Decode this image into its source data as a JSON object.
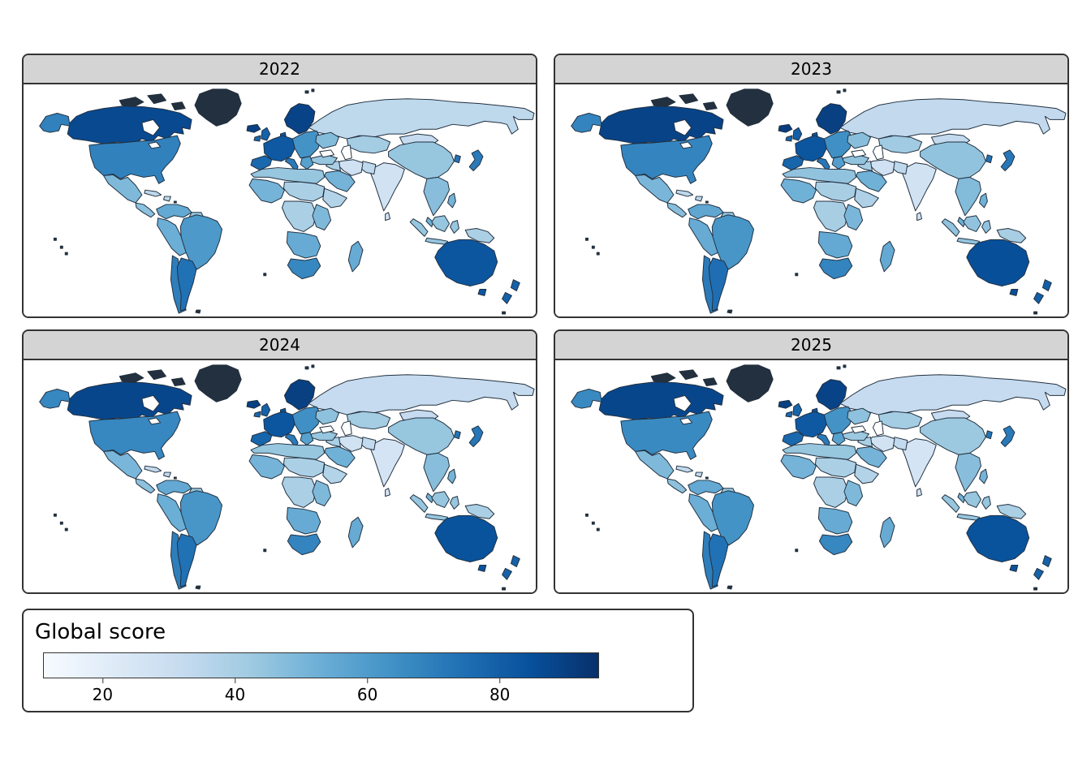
{
  "style_colors": {
    "map_outline": "#22303f",
    "water": "#ffffff",
    "strip_background": "#d4d4d4",
    "panel_border": "#333333"
  },
  "panels": [
    {
      "label": "2022"
    },
    {
      "label": "2023"
    },
    {
      "label": "2024"
    },
    {
      "label": "2025"
    }
  ],
  "legend": {
    "title": "Global score",
    "ticks": [
      "20",
      "40",
      "60",
      "80"
    ]
  },
  "chart_data": {
    "type": "choropleth",
    "title": "",
    "facets": [
      "2022",
      "2023",
      "2024",
      "2025"
    ],
    "legend_title": "Global score",
    "colorbar": {
      "ticks": [
        20,
        40,
        60,
        80
      ],
      "domain": [
        11,
        95
      ],
      "palette": [
        "#f7fbff",
        "#deebf7",
        "#c6dbef",
        "#9ecae1",
        "#6baed6",
        "#4292c6",
        "#2171b5",
        "#08519c",
        "#08306b"
      ]
    },
    "regions": [
      {
        "id": "canada",
        "name": "Canada",
        "values": [
          87,
          89,
          88,
          88
        ]
      },
      {
        "id": "usa",
        "name": "United States",
        "values": [
          69,
          68,
          67,
          66
        ]
      },
      {
        "id": "mexico",
        "name": "Mexico",
        "values": [
          49,
          50,
          50,
          49
        ]
      },
      {
        "id": "central_america",
        "name": "Central America",
        "values": [
          46,
          47,
          46,
          46
        ]
      },
      {
        "id": "cuba",
        "name": "Caribbean",
        "values": [
          34,
          34,
          33,
          33
        ]
      },
      {
        "id": "colombia_venezuela",
        "name": "Colombia / Venezuela",
        "values": [
          55,
          56,
          55,
          55
        ]
      },
      {
        "id": "guyanas",
        "name": "Guyanas",
        "values": [
          44,
          45,
          44,
          44
        ]
      },
      {
        "id": "brazil",
        "name": "Brazil",
        "values": [
          61,
          62,
          62,
          63
        ]
      },
      {
        "id": "peru_bolivia",
        "name": "Peru / Bolivia",
        "values": [
          53,
          54,
          53,
          53
        ]
      },
      {
        "id": "chile",
        "name": "Chile",
        "values": [
          70,
          71,
          70,
          70
        ]
      },
      {
        "id": "argentina",
        "name": "Argentina",
        "values": [
          74,
          75,
          74,
          74
        ]
      },
      {
        "id": "iceland",
        "name": "Iceland",
        "values": [
          90,
          91,
          90,
          90
        ]
      },
      {
        "id": "uk",
        "name": "United Kingdom",
        "values": [
          79,
          80,
          79,
          78
        ]
      },
      {
        "id": "ireland",
        "name": "Ireland",
        "values": [
          77,
          78,
          77,
          77
        ]
      },
      {
        "id": "scandinavia",
        "name": "Scandinavia",
        "values": [
          89,
          90,
          90,
          89
        ]
      },
      {
        "id": "western_europe",
        "name": "Western Europe",
        "values": [
          82,
          83,
          83,
          82
        ]
      },
      {
        "id": "iberia",
        "name": "Spain / Portugal",
        "values": [
          77,
          78,
          78,
          77
        ]
      },
      {
        "id": "italy",
        "name": "Italy",
        "values": [
          71,
          72,
          71,
          71
        ]
      },
      {
        "id": "eastern_europe",
        "name": "Eastern Europe",
        "values": [
          63,
          64,
          64,
          63
        ]
      },
      {
        "id": "balkans",
        "name": "Balkans / Greece",
        "values": [
          58,
          59,
          58,
          58
        ]
      },
      {
        "id": "ukraine",
        "name": "Ukraine",
        "values": [
          48,
          47,
          46,
          46
        ]
      },
      {
        "id": "turkey",
        "name": "Turkey",
        "values": [
          44,
          45,
          44,
          43
        ]
      },
      {
        "id": "russia",
        "name": "Russia",
        "values": [
          34,
          33,
          32,
          32
        ]
      },
      {
        "id": "central_asia",
        "name": "Central Asia",
        "values": [
          41,
          42,
          41,
          41
        ]
      },
      {
        "id": "mongolia",
        "name": "Mongolia",
        "values": [
          32,
          33,
          32,
          32
        ]
      },
      {
        "id": "china",
        "name": "China",
        "values": [
          44,
          45,
          44,
          43
        ]
      },
      {
        "id": "korea",
        "name": "South Korea",
        "values": [
          73,
          74,
          73,
          73
        ]
      },
      {
        "id": "japan",
        "name": "Japan",
        "values": [
          71,
          72,
          72,
          71
        ]
      },
      {
        "id": "india",
        "name": "India",
        "values": [
          27,
          27,
          26,
          26
        ]
      },
      {
        "id": "pakistan",
        "name": "Pakistan",
        "values": [
          34,
          34,
          33,
          33
        ]
      },
      {
        "id": "iran",
        "name": "Iran",
        "values": [
          28,
          28,
          27,
          27
        ]
      },
      {
        "id": "iraq_levant",
        "name": "Iraq / Levant",
        "values": [
          39,
          40,
          39,
          39
        ]
      },
      {
        "id": "saudi_arabia",
        "name": "Arabian Peninsula",
        "values": [
          51,
          52,
          52,
          51
        ]
      },
      {
        "id": "north_africa",
        "name": "North Africa",
        "values": [
          44,
          45,
          44,
          44
        ]
      },
      {
        "id": "west_africa",
        "name": "West Africa",
        "values": [
          51,
          52,
          51,
          51
        ]
      },
      {
        "id": "sahel_sudan",
        "name": "Sahel / Sudan",
        "values": [
          39,
          40,
          39,
          39
        ]
      },
      {
        "id": "horn_of_africa",
        "name": "Horn of Africa",
        "values": [
          37,
          38,
          37,
          37
        ]
      },
      {
        "id": "central_africa",
        "name": "Central Africa",
        "values": [
          39,
          40,
          39,
          39
        ]
      },
      {
        "id": "east_africa",
        "name": "East Africa",
        "values": [
          49,
          50,
          49,
          49
        ]
      },
      {
        "id": "southern_africa",
        "name": "Southern Africa",
        "values": [
          54,
          55,
          54,
          54
        ]
      },
      {
        "id": "south_africa",
        "name": "South Africa",
        "values": [
          67,
          68,
          68,
          67
        ]
      },
      {
        "id": "madagascar",
        "name": "Madagascar",
        "values": [
          54,
          55,
          54,
          54
        ]
      },
      {
        "id": "se_asia",
        "name": "Mainland Southeast Asia",
        "values": [
          47,
          48,
          47,
          47
        ]
      },
      {
        "id": "malaysia",
        "name": "Malaysia",
        "values": [
          52,
          53,
          52,
          52
        ]
      },
      {
        "id": "indonesia",
        "name": "Indonesia",
        "values": [
          44,
          45,
          44,
          44
        ]
      },
      {
        "id": "new_guinea",
        "name": "Papua New Guinea",
        "values": [
          39,
          40,
          39,
          39
        ]
      },
      {
        "id": "philippines",
        "name": "Philippines",
        "values": [
          51,
          52,
          51,
          51
        ]
      },
      {
        "id": "australia",
        "name": "Australia",
        "values": [
          83,
          85,
          84,
          84
        ]
      },
      {
        "id": "new_zealand",
        "name": "New Zealand",
        "values": [
          79,
          80,
          79,
          79
        ]
      }
    ]
  }
}
